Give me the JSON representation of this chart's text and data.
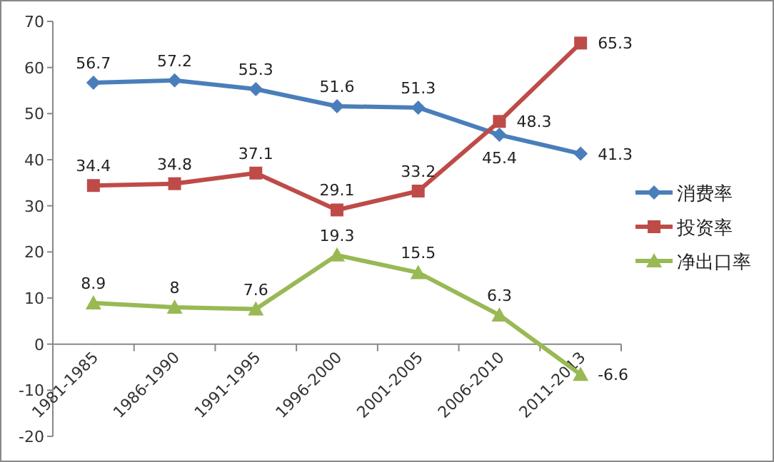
{
  "chart_data": {
    "type": "line",
    "categories": [
      "1981-1985",
      "1986-1990",
      "1991-1995",
      "1996-2000",
      "2001-2005",
      "2006-2010",
      "2011-2013"
    ],
    "series": [
      {
        "name": "消费率",
        "color": "#4a7ebb",
        "marker": "diamond",
        "values": [
          56.7,
          57.2,
          55.3,
          51.6,
          51.3,
          45.4,
          41.3
        ]
      },
      {
        "name": "投资率",
        "color": "#be4b48",
        "marker": "square",
        "values": [
          34.4,
          34.8,
          37.1,
          29.1,
          33.2,
          48.3,
          65.3
        ]
      },
      {
        "name": "净出口率",
        "color": "#98b954",
        "marker": "triangle",
        "values": [
          8.9,
          8,
          7.6,
          19.3,
          15.5,
          6.3,
          -6.6
        ]
      }
    ],
    "ylim": [
      -20,
      70
    ],
    "yticks": [
      -20,
      -10,
      0,
      10,
      20,
      30,
      40,
      50,
      60,
      70
    ],
    "data_labels": true,
    "grid": false,
    "legend": "right"
  }
}
